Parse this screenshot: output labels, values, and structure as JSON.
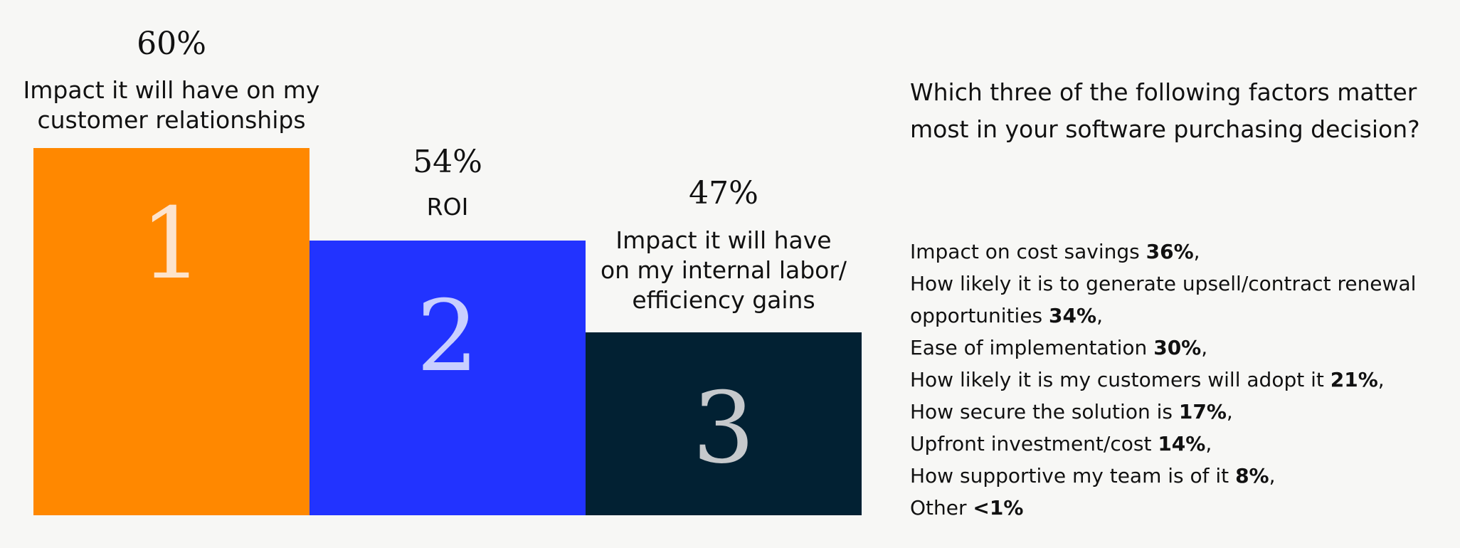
{
  "chart_data": {
    "type": "bar",
    "categories": [
      "Impact it will have on my customer relationships",
      "ROI",
      "Impact it will have on my internal labor/ efficiency gains"
    ],
    "values": [
      60,
      54,
      47
    ],
    "value_labels": [
      "60%",
      "54%",
      "47%"
    ],
    "ranks": [
      "1",
      "2",
      "3"
    ],
    "label_lines": [
      [
        "Impact it will have on my",
        "customer relationships"
      ],
      [
        "ROI"
      ],
      [
        "Impact it will have",
        "on my internal labor/",
        "efficiency gains"
      ]
    ],
    "colors": [
      "#ff8800",
      "#2233ff",
      "#022133"
    ],
    "rank_colors": [
      "#fde3cc",
      "#c9cfff",
      "#c6c9cc"
    ],
    "ylim": [
      0,
      60
    ],
    "grid": false,
    "title": "Which three of the following factors matter most in your software purchasing decision?",
    "others": [
      {
        "text": "Impact on cost savings",
        "value": "36%",
        "sep": ","
      },
      {
        "text": "How likely it is to generate upsell/contract renewal opportunities",
        "value": "34%",
        "sep": ","
      },
      {
        "text": "Ease of implementation",
        "value": "30%",
        "sep": ","
      },
      {
        "text": "How likely it is my customers will adopt it",
        "value": "21%",
        "sep": ","
      },
      {
        "text": "How secure the solution is",
        "value": "17%",
        "sep": ","
      },
      {
        "text": "Upfront investment/cost",
        "value": "14%",
        "sep": ","
      },
      {
        "text": "How supportive my team is of it",
        "value": "8%",
        "sep": ","
      },
      {
        "text": "Other",
        "value": "<1%",
        "sep": ""
      }
    ]
  }
}
